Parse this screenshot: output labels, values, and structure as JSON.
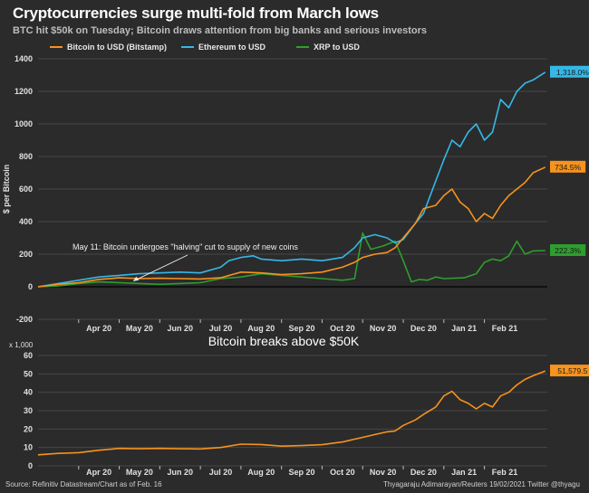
{
  "title": "Cryptocurrencies surge multi-fold from March lows",
  "subtitle": "BTC hit $50k on Tuesday; Bitcoin draws attention from big banks and serious investors",
  "source": "Source: Refinitiv Datastream/Chart as of Feb. 16",
  "credit": "Thyagaraju Adimarayan/Reuters 19/02/2021 Twitter @thyagu",
  "colors": {
    "bitcoin": "#f7931e",
    "ethereum": "#35b8e8",
    "xrp": "#2e9e2e"
  },
  "chart_data": [
    {
      "type": "line",
      "title": "",
      "ylabel": "$ per Bitcoin",
      "xlabel": "",
      "ylim": [
        -200,
        1400
      ],
      "yticks": [
        -200,
        0,
        200,
        400,
        600,
        800,
        1000,
        1200,
        1400
      ],
      "xlim": [
        3,
        15.55
      ],
      "xtick_labels": [
        "Apr 20",
        "May 20",
        "Jun 20",
        "Jul 20",
        "Aug 20",
        "Sep 20",
        "Oct 20",
        "Nov 20",
        "Dec 20",
        "Jan 21",
        "Feb 21"
      ],
      "annotation": "May 11: Bitcoin undergoes \"halving\" cut to supply of new coins",
      "series": [
        {
          "name": "Bitcoin to USD (Bitstamp)",
          "end_label": "734.5%",
          "points": [
            [
              3,
              0
            ],
            [
              3.5,
              15
            ],
            [
              4,
              25
            ],
            [
              4.5,
              45
            ],
            [
              5,
              55
            ],
            [
              5.5,
              50
            ],
            [
              6,
              52
            ],
            [
              6.5,
              50
            ],
            [
              7,
              48
            ],
            [
              7.5,
              55
            ],
            [
              8,
              90
            ],
            [
              8.5,
              85
            ],
            [
              9,
              75
            ],
            [
              9.5,
              80
            ],
            [
              10,
              90
            ],
            [
              10.5,
              120
            ],
            [
              10.8,
              150
            ],
            [
              11,
              180
            ],
            [
              11.3,
              200
            ],
            [
              11.6,
              210
            ],
            [
              11.8,
              240
            ],
            [
              12,
              300
            ],
            [
              12.3,
              390
            ],
            [
              12.5,
              480
            ],
            [
              12.8,
              500
            ],
            [
              13,
              560
            ],
            [
              13.2,
              600
            ],
            [
              13.4,
              520
            ],
            [
              13.6,
              480
            ],
            [
              13.8,
              400
            ],
            [
              14,
              450
            ],
            [
              14.2,
              420
            ],
            [
              14.4,
              500
            ],
            [
              14.6,
              560
            ],
            [
              14.8,
              600
            ],
            [
              15,
              640
            ],
            [
              15.2,
              700
            ],
            [
              15.5,
              734.5
            ]
          ]
        },
        {
          "name": "Ethereum to USD",
          "end_label": "1,318.0%",
          "points": [
            [
              3,
              0
            ],
            [
              3.5,
              20
            ],
            [
              4,
              40
            ],
            [
              4.5,
              60
            ],
            [
              5,
              70
            ],
            [
              5.5,
              80
            ],
            [
              6,
              85
            ],
            [
              6.5,
              90
            ],
            [
              7,
              85
            ],
            [
              7.5,
              120
            ],
            [
              7.7,
              160
            ],
            [
              8,
              180
            ],
            [
              8.3,
              190
            ],
            [
              8.5,
              170
            ],
            [
              9,
              160
            ],
            [
              9.5,
              170
            ],
            [
              10,
              160
            ],
            [
              10.5,
              180
            ],
            [
              10.8,
              240
            ],
            [
              11,
              300
            ],
            [
              11.3,
              320
            ],
            [
              11.6,
              300
            ],
            [
              11.8,
              270
            ],
            [
              12,
              290
            ],
            [
              12.3,
              390
            ],
            [
              12.5,
              450
            ],
            [
              12.8,
              650
            ],
            [
              13,
              780
            ],
            [
              13.2,
              900
            ],
            [
              13.4,
              860
            ],
            [
              13.6,
              950
            ],
            [
              13.8,
              1000
            ],
            [
              14,
              900
            ],
            [
              14.2,
              950
            ],
            [
              14.4,
              1150
            ],
            [
              14.6,
              1100
            ],
            [
              14.8,
              1200
            ],
            [
              15,
              1250
            ],
            [
              15.2,
              1270
            ],
            [
              15.5,
              1318
            ]
          ]
        },
        {
          "name": "XRP to USD",
          "end_label": "222.3%",
          "points": [
            [
              3,
              0
            ],
            [
              3.5,
              5
            ],
            [
              4,
              20
            ],
            [
              4.5,
              30
            ],
            [
              5,
              25
            ],
            [
              5.5,
              20
            ],
            [
              6,
              15
            ],
            [
              6.5,
              20
            ],
            [
              7,
              25
            ],
            [
              7.5,
              50
            ],
            [
              8,
              60
            ],
            [
              8.5,
              80
            ],
            [
              9,
              70
            ],
            [
              9.5,
              60
            ],
            [
              10,
              50
            ],
            [
              10.5,
              40
            ],
            [
              10.8,
              50
            ],
            [
              11,
              330
            ],
            [
              11.2,
              230
            ],
            [
              11.5,
              250
            ],
            [
              11.8,
              280
            ],
            [
              12,
              160
            ],
            [
              12.2,
              30
            ],
            [
              12.4,
              45
            ],
            [
              12.6,
              40
            ],
            [
              12.8,
              60
            ],
            [
              13,
              50
            ],
            [
              13.5,
              55
            ],
            [
              13.8,
              80
            ],
            [
              14,
              150
            ],
            [
              14.2,
              170
            ],
            [
              14.4,
              160
            ],
            [
              14.6,
              190
            ],
            [
              14.8,
              280
            ],
            [
              15,
              200
            ],
            [
              15.2,
              220
            ],
            [
              15.5,
              222.3
            ]
          ]
        }
      ]
    },
    {
      "type": "line",
      "title": "Bitcoin breaks above $50K",
      "ylabel": "x 1,000",
      "ylim": [
        0,
        60
      ],
      "yticks": [
        0,
        10,
        20,
        30,
        40,
        50,
        60
      ],
      "xlim": [
        3,
        15.55
      ],
      "xtick_labels": [
        "Apr 20",
        "May 20",
        "Jun 20",
        "Jul 20",
        "Aug 20",
        "Sep 20",
        "Oct 20",
        "Nov 20",
        "Dec 20",
        "Jan 21",
        "Feb 21"
      ],
      "series": [
        {
          "name": "Bitcoin to USD (Bitstamp)",
          "end_label": "51,579.5",
          "points": [
            [
              3,
              6
            ],
            [
              3.5,
              6.8
            ],
            [
              4,
              7.2
            ],
            [
              4.5,
              8.5
            ],
            [
              5,
              9.5
            ],
            [
              5.5,
              9.3
            ],
            [
              6,
              9.5
            ],
            [
              6.5,
              9.3
            ],
            [
              7,
              9.2
            ],
            [
              7.5,
              10
            ],
            [
              8,
              11.8
            ],
            [
              8.5,
              11.6
            ],
            [
              9,
              10.7
            ],
            [
              9.5,
              11
            ],
            [
              10,
              11.5
            ],
            [
              10.5,
              13
            ],
            [
              10.8,
              14.5
            ],
            [
              11,
              15.5
            ],
            [
              11.3,
              17
            ],
            [
              11.6,
              18.5
            ],
            [
              11.8,
              19
            ],
            [
              12,
              22
            ],
            [
              12.3,
              25
            ],
            [
              12.5,
              28
            ],
            [
              12.8,
              32
            ],
            [
              13,
              38
            ],
            [
              13.2,
              40.5
            ],
            [
              13.4,
              36
            ],
            [
              13.6,
              34
            ],
            [
              13.8,
              31
            ],
            [
              14,
              34
            ],
            [
              14.2,
              32
            ],
            [
              14.4,
              38
            ],
            [
              14.6,
              40
            ],
            [
              14.8,
              44
            ],
            [
              15,
              47
            ],
            [
              15.2,
              49
            ],
            [
              15.5,
              51.6
            ]
          ]
        }
      ]
    }
  ]
}
